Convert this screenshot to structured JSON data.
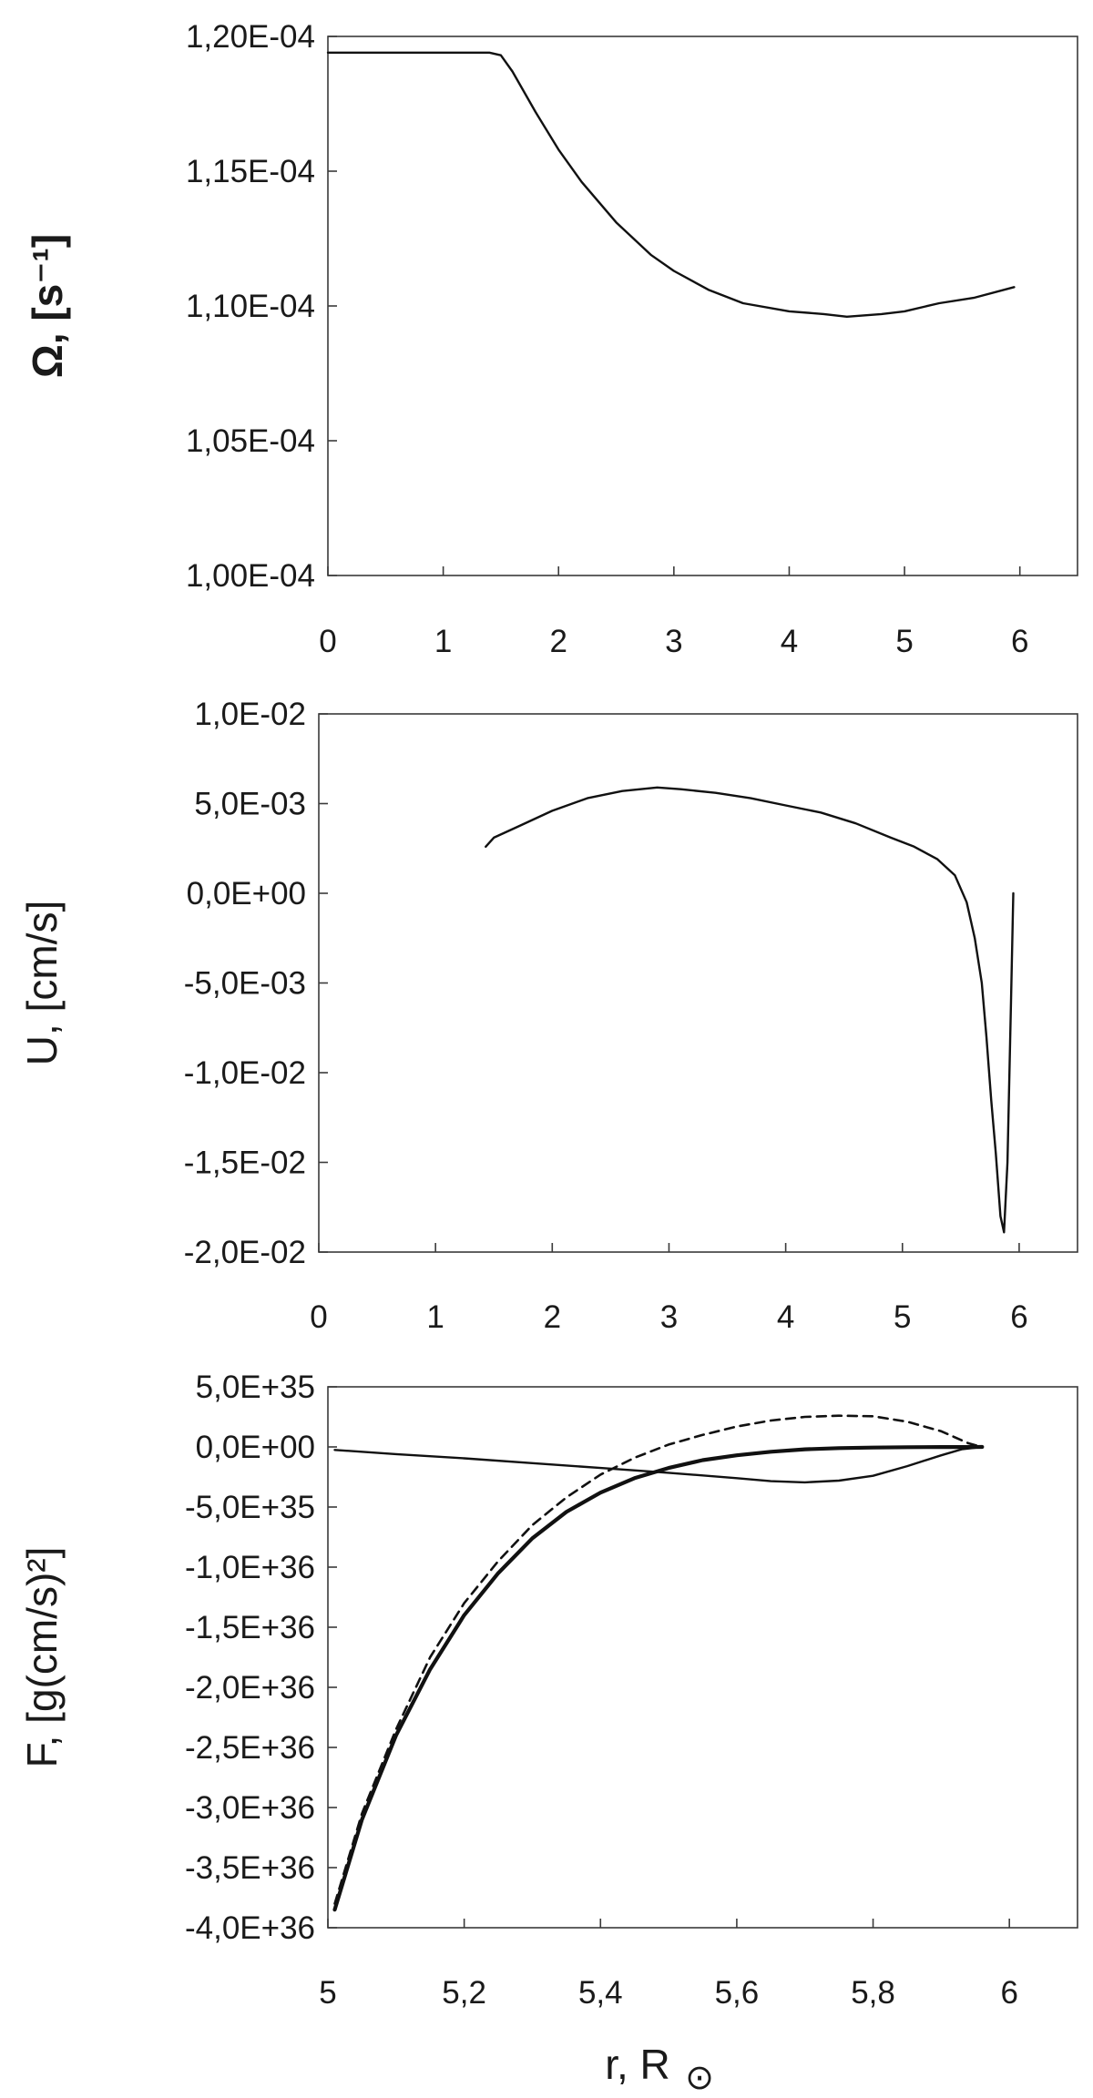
{
  "chart_data": [
    {
      "type": "line",
      "title": "",
      "ylabel": "Ω, [s⁻¹]",
      "xlabel": "",
      "xlim": [
        0,
        6.5
      ],
      "ylim": [
        0.0001,
        0.00012
      ],
      "x_ticks": [
        0,
        1,
        2,
        3,
        4,
        5,
        6
      ],
      "x_tick_labels": [
        "0",
        "1",
        "2",
        "3",
        "4",
        "5",
        "6"
      ],
      "y_ticks": [
        0.0001,
        0.000105,
        0.00011,
        0.000115,
        0.00012
      ],
      "y_tick_labels": [
        "1,00E-04",
        "1,05E-04",
        "1,10E-04",
        "1,15E-04",
        "1,20E-04"
      ],
      "grid": false,
      "series": [
        {
          "style": "solid",
          "x": [
            0,
            0.5,
            1.0,
            1.4,
            1.5,
            1.6,
            1.8,
            2.0,
            2.2,
            2.5,
            2.8,
            3.0,
            3.3,
            3.6,
            4.0,
            4.3,
            4.5,
            4.8,
            5.0,
            5.3,
            5.6,
            5.95
          ],
          "y": [
            0.0001194,
            0.0001194,
            0.0001194,
            0.0001194,
            0.0001193,
            0.0001187,
            0.0001172,
            0.0001158,
            0.0001146,
            0.0001131,
            0.0001119,
            0.0001113,
            0.0001106,
            0.0001101,
            0.0001098,
            0.0001097,
            0.0001096,
            0.0001097,
            0.0001098,
            0.0001101,
            0.0001103,
            0.0001107
          ]
        }
      ]
    },
    {
      "type": "line",
      "title": "",
      "ylabel": "U, [cm/s]",
      "xlabel": "",
      "xlim": [
        0,
        6.5
      ],
      "ylim": [
        -0.02,
        0.01
      ],
      "x_ticks": [
        0,
        1,
        2,
        3,
        4,
        5,
        6
      ],
      "x_tick_labels": [
        "0",
        "1",
        "2",
        "3",
        "4",
        "5",
        "6"
      ],
      "y_ticks": [
        -0.02,
        -0.015,
        -0.01,
        -0.005,
        0,
        0.005,
        0.01
      ],
      "y_tick_labels": [
        "-2,0E-02",
        "-1,5E-02",
        "-1,0E-02",
        "-5,0E-03",
        "0,0E+00",
        "5,0E-03",
        "1,0E-02"
      ],
      "grid": false,
      "series": [
        {
          "style": "solid",
          "x": [
            1.43,
            1.5,
            1.7,
            2.0,
            2.3,
            2.6,
            2.9,
            3.1,
            3.4,
            3.7,
            4.0,
            4.3,
            4.6,
            4.9,
            5.1,
            5.3,
            5.45,
            5.55,
            5.62,
            5.68,
            5.72,
            5.76,
            5.8,
            5.84,
            5.87,
            5.9,
            5.93,
            5.95
          ],
          "y": [
            0.0026,
            0.0031,
            0.0037,
            0.0046,
            0.0053,
            0.0057,
            0.0059,
            0.0058,
            0.0056,
            0.0053,
            0.0049,
            0.0045,
            0.0039,
            0.0031,
            0.0026,
            0.0019,
            0.001,
            -0.0005,
            -0.0025,
            -0.005,
            -0.008,
            -0.0115,
            -0.0145,
            -0.018,
            -0.0189,
            -0.015,
            -0.006,
            0.0
          ]
        }
      ]
    },
    {
      "type": "line",
      "title": "",
      "ylabel": "F, [g(cm/s)²]",
      "xlabel": "r, R",
      "xlabel_symbol": "⊙",
      "xlim": [
        5.0,
        6.1
      ],
      "ylim": [
        -4e+36,
        5e+35
      ],
      "x_ticks": [
        5.0,
        5.2,
        5.4,
        5.6,
        5.8,
        6.0
      ],
      "x_tick_labels": [
        "5",
        "5,2",
        "5,4",
        "5,6",
        "5,8",
        "6"
      ],
      "y_ticks": [
        -4e+36,
        -3.5e+36,
        -3e+36,
        -2.5e+36,
        -2e+36,
        -1.5e+36,
        -1e+36,
        -5e+35,
        0,
        5e+35
      ],
      "y_tick_labels": [
        "-4,0E+36",
        "-3,5E+36",
        "-3,0E+36",
        "-2,5E+36",
        "-2,0E+36",
        "-1,5E+36",
        "-1,0E+36",
        "-5,0E+35",
        "0,0E+00",
        "5,0E+35"
      ],
      "grid": false,
      "series": [
        {
          "style": "thick",
          "x": [
            5.01,
            5.05,
            5.1,
            5.15,
            5.2,
            5.25,
            5.3,
            5.35,
            5.4,
            5.45,
            5.5,
            5.55,
            5.6,
            5.65,
            5.7,
            5.75,
            5.8,
            5.85,
            5.9,
            5.94,
            5.96
          ],
          "y": [
            -3.85e+36,
            -3.1e+36,
            -2.4e+36,
            -1.85e+36,
            -1.4e+36,
            -1.05e+36,
            -7.6e+35,
            -5.4e+35,
            -3.8e+35,
            -2.6e+35,
            -1.75e+35,
            -1.1e+35,
            -7e+34,
            -4e+34,
            -2e+34,
            -1e+34,
            -5e+33,
            -2e+33,
            -1e+33,
            -5e+32,
            -1e+32
          ]
        },
        {
          "style": "dashed",
          "x": [
            5.01,
            5.05,
            5.1,
            5.15,
            5.2,
            5.25,
            5.3,
            5.35,
            5.4,
            5.45,
            5.5,
            5.55,
            5.6,
            5.65,
            5.7,
            5.75,
            5.8,
            5.85,
            5.9,
            5.94,
            5.96
          ],
          "y": [
            -3.8e+36,
            -3.05e+36,
            -2.35e+36,
            -1.75e+36,
            -1.3e+36,
            -9.5e+35,
            -6.5e+35,
            -4.2e+35,
            -2.3e+35,
            -9e+34,
            2e+34,
            1e+35,
            1.7e+35,
            2.2e+35,
            2.5e+35,
            2.6e+35,
            2.55e+35,
            2.1e+35,
            1.3e+35,
            3e+34,
            -1e+33
          ]
        },
        {
          "style": "thin",
          "x": [
            5.01,
            5.1,
            5.2,
            5.3,
            5.4,
            5.5,
            5.6,
            5.65,
            5.7,
            5.75,
            5.8,
            5.85,
            5.9,
            5.93,
            5.96
          ],
          "y": [
            -2.5e+34,
            -6e+34,
            -9.5e+34,
            -1.35e+35,
            -1.75e+35,
            -2.15e+35,
            -2.6e+35,
            -2.85e+35,
            -2.95e+35,
            -2.8e+35,
            -2.4e+35,
            -1.6e+35,
            -7e+34,
            -2e+34,
            0
          ]
        }
      ]
    }
  ]
}
